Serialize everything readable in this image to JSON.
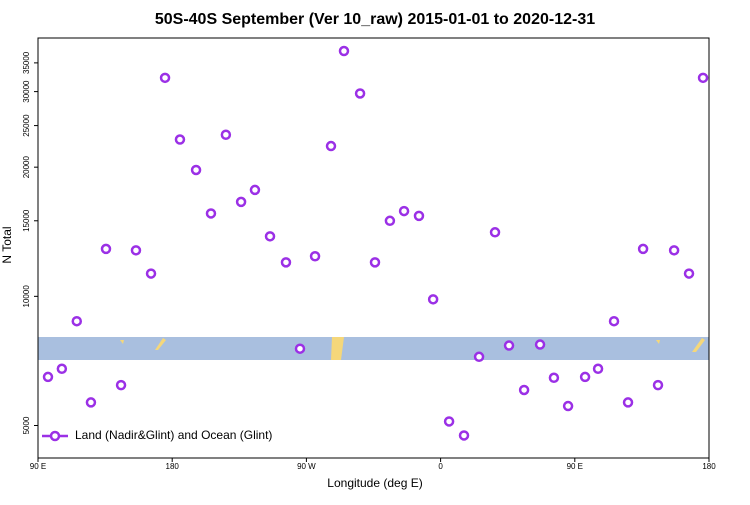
{
  "chart_data": {
    "type": "scatter",
    "title": "50S-40S September (Ver 10_raw)   2015-01-01 to 2020-12-31",
    "xlabel": "Longitude (deg E)",
    "ylabel": "N Total",
    "log_y": true,
    "xlim": [
      90,
      540
    ],
    "xticks": [
      {
        "value": 90,
        "label": "90 E"
      },
      180,
      {
        "value": 270,
        "label": "90 W"
      },
      {
        "value": 360,
        "label": "0"
      },
      {
        "value": 450,
        "label": "90 E"
      },
      {
        "value": 540,
        "label": "180"
      }
    ],
    "ylim": [
      4200,
      40000
    ],
    "yticks": [
      5000,
      10000,
      15000,
      20000,
      25000,
      30000,
      35000
    ],
    "legend": "lower left",
    "series": [
      {
        "name": "Land (Nadir&Glint) and Ocean (Glint)",
        "color": "#9b30e6",
        "x": [
          96.7,
          106,
          116,
          125.5,
          135.6,
          145.7,
          155.7,
          165.8,
          175.2,
          185.2,
          196,
          206,
          216,
          226.2,
          235.5,
          245.6,
          256.3,
          265.7,
          275.8,
          286.5,
          295.2,
          306,
          316,
          326,
          335.5,
          345.5,
          355,
          365.7,
          375.7,
          385.8,
          396.5,
          405.9,
          416,
          426.7,
          436,
          445.5,
          456.9,
          465.6,
          476.3,
          485.7,
          495.8,
          505.8,
          516.6,
          526.6,
          536
        ],
        "values": [
          6490,
          6780,
          8750,
          5660,
          12900,
          6210,
          12800,
          11300,
          32300,
          23200,
          19700,
          15600,
          23800,
          16600,
          17700,
          13800,
          12000,
          7550,
          12400,
          22400,
          37300,
          29700,
          12000,
          15000,
          15800,
          15400,
          9840,
          5110,
          4740,
          7230,
          14100,
          7680,
          6050,
          7720,
          6460,
          5550,
          6490,
          6780,
          8750,
          5660,
          12900,
          6210,
          12800,
          11300,
          32300
        ]
      }
    ]
  }
}
